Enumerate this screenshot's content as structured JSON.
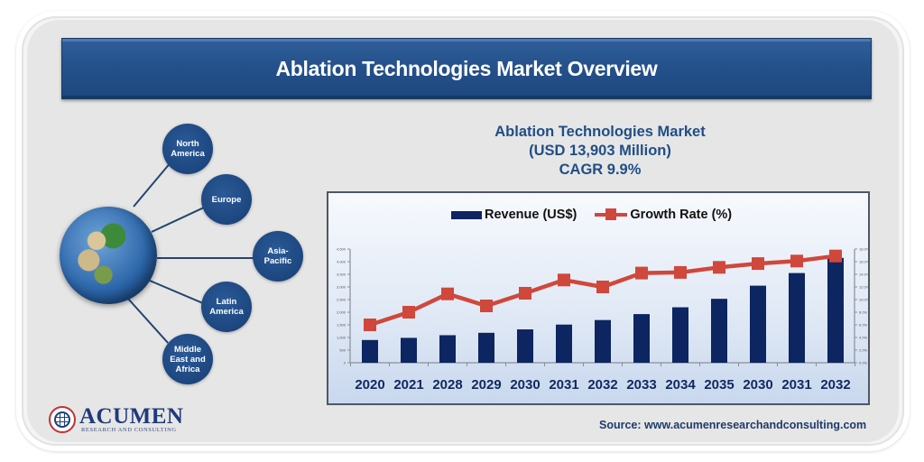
{
  "header": {
    "title": "Ablation Technologies Market Overview"
  },
  "regions": [
    {
      "label": "North\nAmerica"
    },
    {
      "label": "Europe"
    },
    {
      "label": "Asia-\nPacific"
    },
    {
      "label": "Latin\nAmerica"
    },
    {
      "label": "Middle\nEast and\nAfrica"
    }
  ],
  "chart_header": {
    "line1": "Ablation Technologies Market",
    "line2": "(USD 13,903 Million)",
    "line3": "CAGR 9.9%"
  },
  "legend": {
    "revenue": "Revenue (US$)",
    "growth": "Growth Rate (%)"
  },
  "colors": {
    "bar": "#0d2561",
    "line": "#d0473c",
    "banner": "#24508a",
    "title_text": "#1f4e86"
  },
  "chart_data": {
    "type": "bar",
    "title": "Ablation Technologies Market (USD 13,903 Million) CAGR 9.9%",
    "xlabel": "",
    "ylabel": "Revenue (US$)",
    "y2label": "Growth Rate (%)",
    "categories": [
      "2020",
      "2021",
      "2028",
      "2029",
      "2030",
      "2031",
      "2032",
      "2033",
      "2034",
      "2035",
      "2030",
      "2031",
      "2032"
    ],
    "series": [
      {
        "name": "Revenue (US$)",
        "type": "bar",
        "axis": "left",
        "values": [
          900,
          985,
          1090,
          1185,
          1320,
          1510,
          1690,
          1925,
          2195,
          2530,
          3050,
          3550,
          4150
        ]
      },
      {
        "name": "Growth Rate (%)",
        "type": "line",
        "axis": "right",
        "values": [
          6.0,
          8.0,
          10.9,
          9.0,
          11.0,
          13.1,
          12.0,
          14.2,
          14.3,
          15.1,
          15.7,
          16.1,
          16.9
        ]
      }
    ],
    "ylim": [
      0,
      4500
    ],
    "y_ticks": [
      "0",
      "500",
      "1,000",
      "1,500",
      "2,000",
      "2,500",
      "3,000",
      "3,500",
      "4,000",
      "4,500"
    ],
    "y2lim": [
      0,
      18
    ],
    "y2_ticks": [
      "0.0%",
      "2.0%",
      "4.0%",
      "6.0%",
      "8.0%",
      "10.0%",
      "12.0%",
      "14.0%",
      "16.0%",
      "18.0%"
    ],
    "grid": false,
    "legend_position": "top"
  },
  "footer": {
    "logo_name": "ACUMEN",
    "logo_sub": "RESEARCH AND CONSULTING",
    "source": "Source: www.acumenresearchandconsulting.com"
  }
}
